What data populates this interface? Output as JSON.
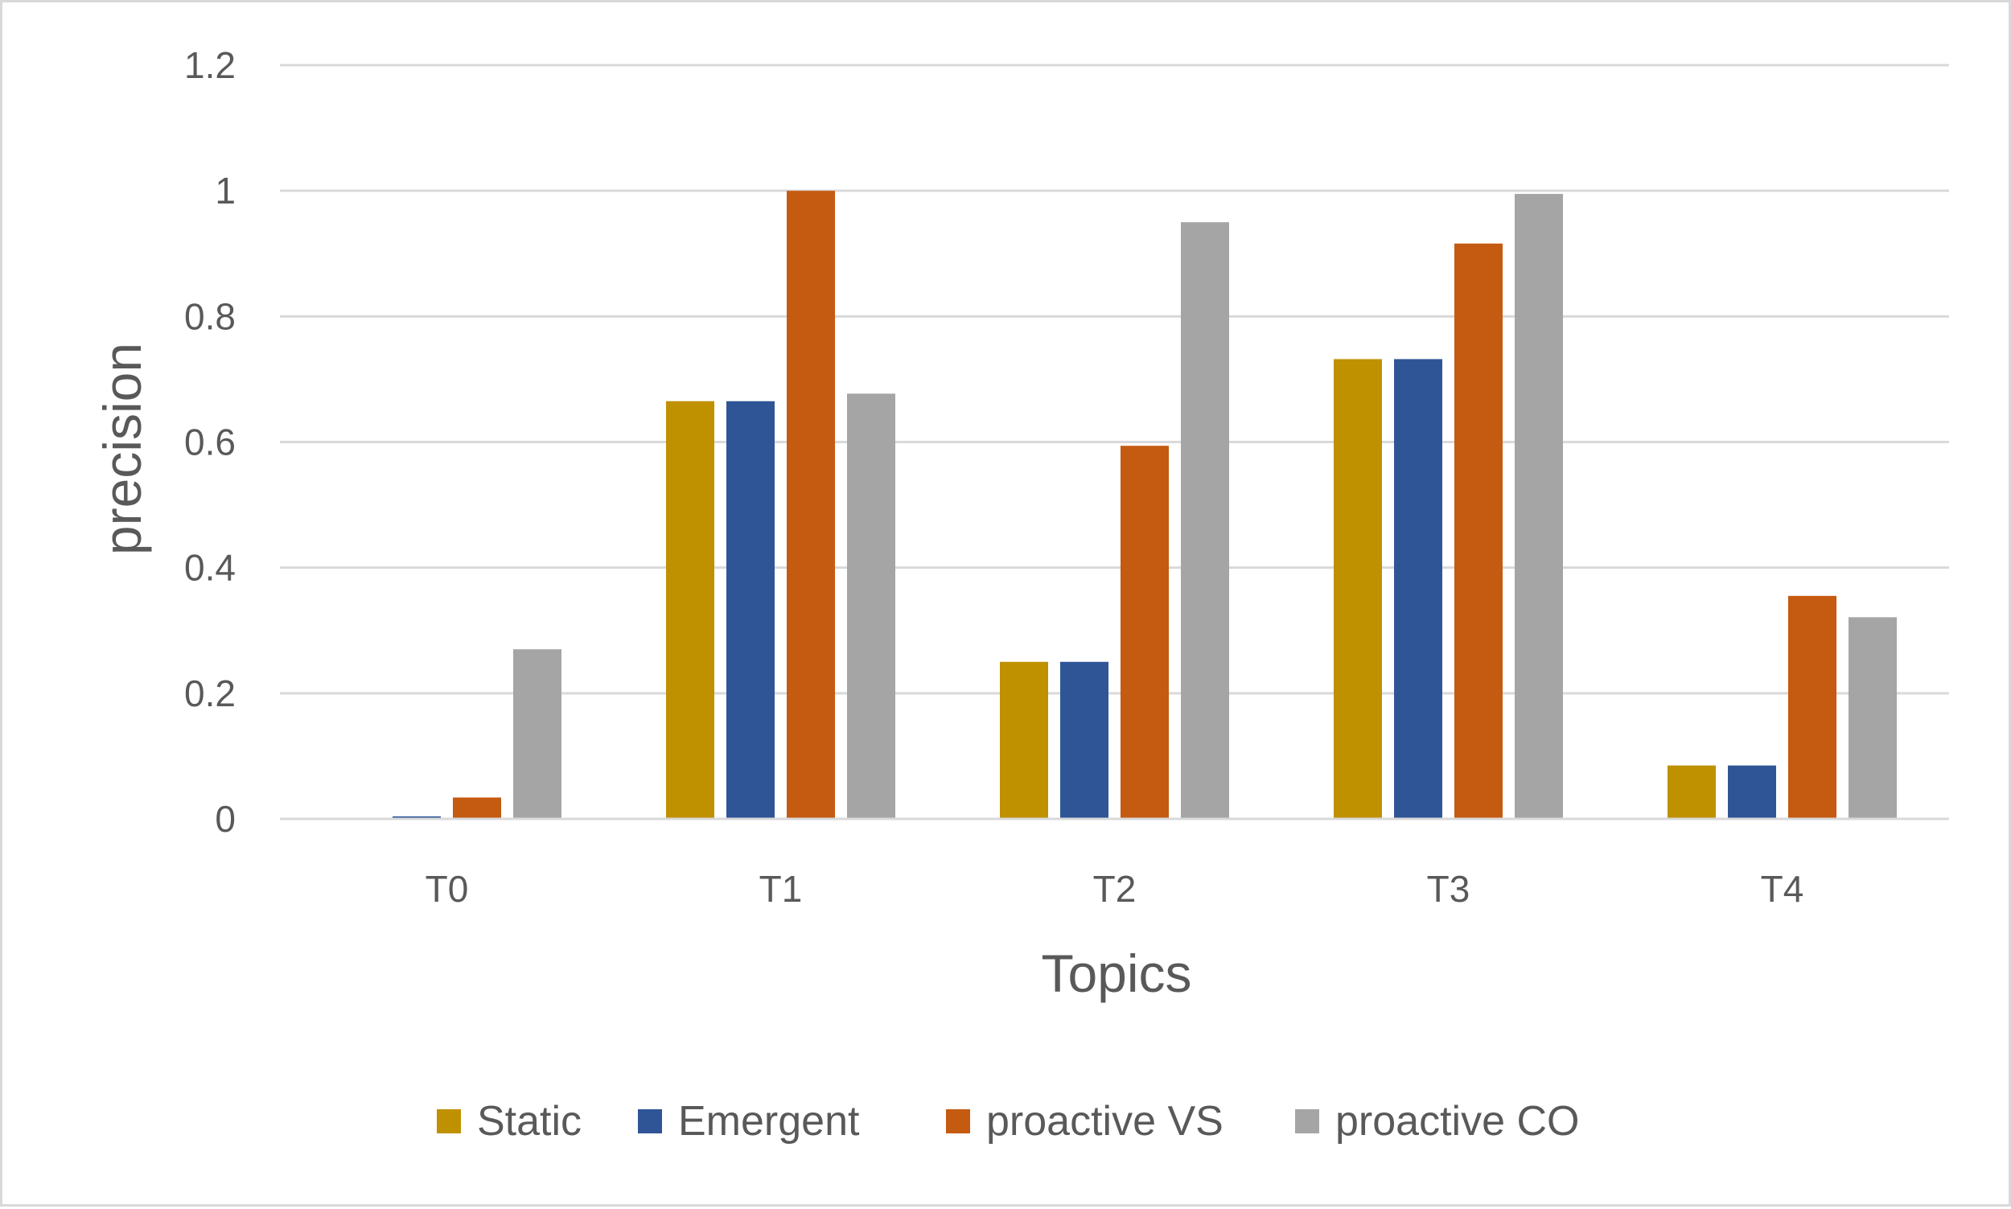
{
  "chart_data": {
    "type": "bar",
    "title": "",
    "xlabel": "Topics",
    "ylabel": "precision",
    "categories": [
      "T0",
      "T1",
      "T2",
      "T3",
      "T4"
    ],
    "ylim": [
      0,
      1.2
    ],
    "yticks": [
      0,
      0.2,
      0.4,
      0.6,
      0.8,
      1,
      1.2
    ],
    "ytick_labels": [
      "0",
      "0.2",
      "0.4",
      "0.6",
      "0.8",
      "1",
      "1.2"
    ],
    "grid": true,
    "legend_position": "bottom",
    "series": [
      {
        "name": "Static",
        "color": "#bf9000",
        "values": [
          0,
          0.665,
          0.25,
          0.732,
          0.085
        ]
      },
      {
        "name": "Emergent",
        "color": "#2f5597",
        "values": [
          0.004,
          0.665,
          0.25,
          0.732,
          0.085
        ]
      },
      {
        "name": "proactive VS",
        "color": "#c55a11",
        "values": [
          0.034,
          1.0,
          0.594,
          0.916,
          0.355
        ]
      },
      {
        "name": "proactive CO",
        "color": "#a5a5a5",
        "values": [
          0.27,
          0.677,
          0.95,
          0.995,
          0.321
        ]
      }
    ]
  }
}
